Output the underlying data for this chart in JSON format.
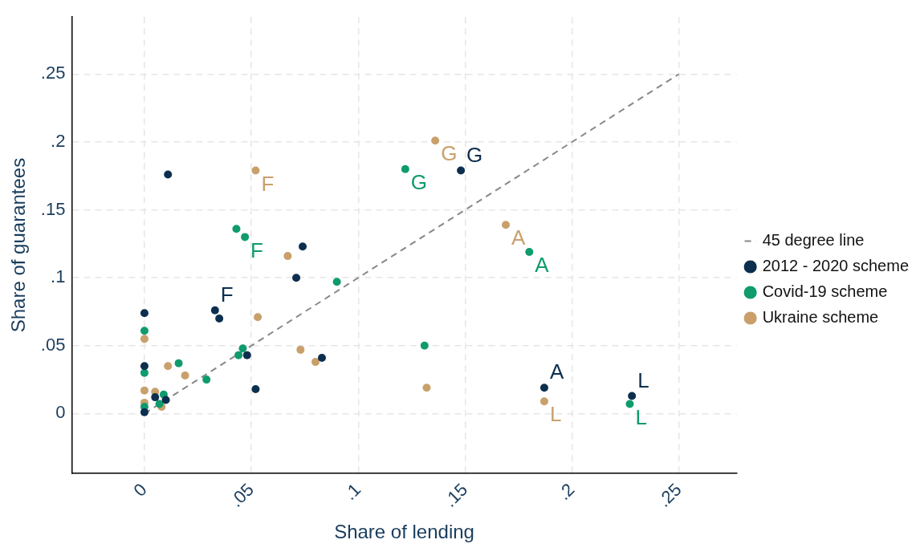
{
  "chart_data": {
    "type": "scatter",
    "xlabel": "Share of lending",
    "ylabel": "Share of guarantees",
    "xlim": [
      -0.034,
      0.277
    ],
    "ylim": [
      -0.044,
      0.292
    ],
    "xticks": [
      0,
      {
        "value": 0.05,
        "label": ".05"
      },
      {
        "value": 0.1,
        "label": ".1"
      },
      {
        "value": 0.15,
        "label": ".15"
      },
      {
        "value": 0.2,
        "label": ".2"
      },
      {
        "value": 0.25,
        "label": ".25"
      }
    ],
    "yticks": [
      0,
      {
        "value": 0.05,
        "label": ".05"
      },
      {
        "value": 0.1,
        "label": ".1"
      },
      {
        "value": 0.15,
        "label": ".15"
      },
      {
        "value": 0.2,
        "label": ".2"
      },
      {
        "value": 0.25,
        "label": ".25"
      }
    ],
    "grid": true,
    "legend": "right",
    "marker": "circle",
    "series": [
      {
        "name": "45 degree line",
        "type": "line",
        "line_style": "dashed",
        "marker": "none",
        "color": "#888888",
        "x": [
          0,
          0.25
        ],
        "values": [
          0,
          0.25
        ]
      },
      {
        "name": "2012 - 2020 scheme",
        "color": "#0d2f4f",
        "x": [
          0.011,
          0,
          0.033,
          0.035,
          0.071,
          0.074,
          0.048,
          0.083,
          0.052,
          0,
          0,
          0.005,
          0.01,
          0.148,
          0.187,
          0.228
        ],
        "values": [
          0.176,
          0.074,
          0.076,
          0.07,
          0.1,
          0.123,
          0.043,
          0.041,
          0.018,
          0.035,
          0.001,
          0.012,
          0.01,
          0.179,
          0.019,
          0.013
        ]
      },
      {
        "name": "Covid-19 scheme",
        "color": "#0f9b6e",
        "x": [
          0.09,
          0,
          0,
          0.016,
          0.029,
          0.046,
          0.044,
          0.009,
          0.007,
          0,
          0.043,
          0.047,
          0.122,
          0.18,
          0.131,
          0.227
        ],
        "values": [
          0.097,
          0.061,
          0.03,
          0.037,
          0.025,
          0.048,
          0.043,
          0.014,
          0.007,
          0.005,
          0.136,
          0.13,
          0.18,
          0.119,
          0.05,
          0.007
        ]
      },
      {
        "name": "Ukraine scheme",
        "color": "#c9a06b",
        "x": [
          0.053,
          0,
          0.011,
          0.019,
          0,
          0.005,
          0,
          0.008,
          0.073,
          0.08,
          0.052,
          0.067,
          0.136,
          0.169,
          0.132,
          0.187
        ],
        "values": [
          0.071,
          0.055,
          0.035,
          0.028,
          0.017,
          0.016,
          0.008,
          0.005,
          0.047,
          0.038,
          0.179,
          0.116,
          0.201,
          0.139,
          0.019,
          0.009
        ]
      }
    ],
    "annotations": [
      {
        "text": "F",
        "x": 0.033,
        "y": 0.076
      },
      {
        "text": "G",
        "x": 0.148,
        "y": 0.179
      },
      {
        "text": "A",
        "x": 0.187,
        "y": 0.019
      },
      {
        "text": "L",
        "x": 0.228,
        "y": 0.013
      },
      {
        "text": "F",
        "x": 0.047,
        "y": 0.13
      },
      {
        "text": "G",
        "x": 0.122,
        "y": 0.18
      },
      {
        "text": "A",
        "x": 0.18,
        "y": 0.119
      },
      {
        "text": "L",
        "x": 0.227,
        "y": 0.007
      },
      {
        "text": "F",
        "x": 0.052,
        "y": 0.179
      },
      {
        "text": "G",
        "x": 0.136,
        "y": 0.201
      },
      {
        "text": "A",
        "x": 0.169,
        "y": 0.139
      },
      {
        "text": "L",
        "x": 0.187,
        "y": 0.009
      }
    ]
  }
}
